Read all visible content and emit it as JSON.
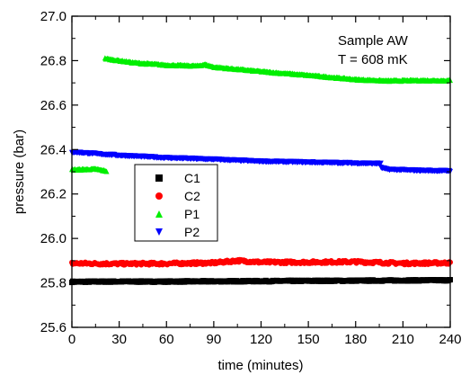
{
  "chart_data": {
    "type": "scatter",
    "title": "",
    "xlabel": "time (minutes)",
    "ylabel": "pressure (bar)",
    "xlim": [
      0,
      240
    ],
    "ylim": [
      25.6,
      27.0
    ],
    "xticks": [
      0,
      30,
      60,
      90,
      120,
      150,
      180,
      210,
      240
    ],
    "yticks": [
      25.6,
      25.8,
      26.0,
      26.2,
      26.4,
      26.6,
      26.8,
      27.0
    ],
    "x_tick_labels": [
      "0",
      "30",
      "60",
      "90",
      "120",
      "150",
      "180",
      "210",
      "240"
    ],
    "y_tick_labels": [
      "25.6",
      "25.8",
      "26.0",
      "26.2",
      "26.4",
      "26.6",
      "26.8",
      "27.0"
    ],
    "grid": false,
    "legend_position": "center-left",
    "annotations": [
      "Sample AW",
      "T = 608 mK"
    ],
    "series": [
      {
        "name": "C1",
        "marker": "square",
        "color": "#000000",
        "points": [
          [
            0,
            25.805
          ],
          [
            30,
            25.806
          ],
          [
            60,
            25.806
          ],
          [
            90,
            25.807
          ],
          [
            120,
            25.808
          ],
          [
            150,
            25.809
          ],
          [
            180,
            25.81
          ],
          [
            210,
            25.811
          ],
          [
            240,
            25.812
          ]
        ]
      },
      {
        "name": "C2",
        "marker": "circle",
        "color": "#ff0000",
        "points": [
          [
            0,
            25.888
          ],
          [
            30,
            25.886
          ],
          [
            60,
            25.887
          ],
          [
            90,
            25.89
          ],
          [
            105,
            25.9
          ],
          [
            120,
            25.893
          ],
          [
            150,
            25.893
          ],
          [
            180,
            25.895
          ],
          [
            210,
            25.888
          ],
          [
            240,
            25.89
          ]
        ]
      },
      {
        "name": "P1",
        "marker": "triangle-up",
        "color": "#00ee00",
        "segments": [
          [
            [
              0,
              26.31
            ],
            [
              15,
              26.313
            ],
            [
              22,
              26.304
            ]
          ],
          [
            [
              21,
              26.81
            ],
            [
              40,
              26.791
            ],
            [
              60,
              26.781
            ],
            [
              80,
              26.777
            ],
            [
              84,
              26.784
            ],
            [
              90,
              26.772
            ],
            [
              120,
              26.752
            ],
            [
              150,
              26.735
            ],
            [
              180,
              26.716
            ],
            [
              200,
              26.71
            ],
            [
              220,
              26.712
            ],
            [
              240,
              26.711
            ]
          ]
        ]
      },
      {
        "name": "P2",
        "marker": "triangle-down",
        "color": "#0000ff",
        "segments": [
          [
            [
              0,
              26.388
            ],
            [
              30,
              26.373
            ],
            [
              60,
              26.362
            ],
            [
              90,
              26.355
            ],
            [
              120,
              26.346
            ],
            [
              150,
              26.342
            ],
            [
              180,
              26.338
            ],
            [
              196,
              26.336
            ]
          ],
          [
            [
              196,
              26.318
            ],
            [
              200,
              26.31
            ],
            [
              220,
              26.305
            ],
            [
              240,
              26.303
            ]
          ]
        ]
      }
    ]
  }
}
